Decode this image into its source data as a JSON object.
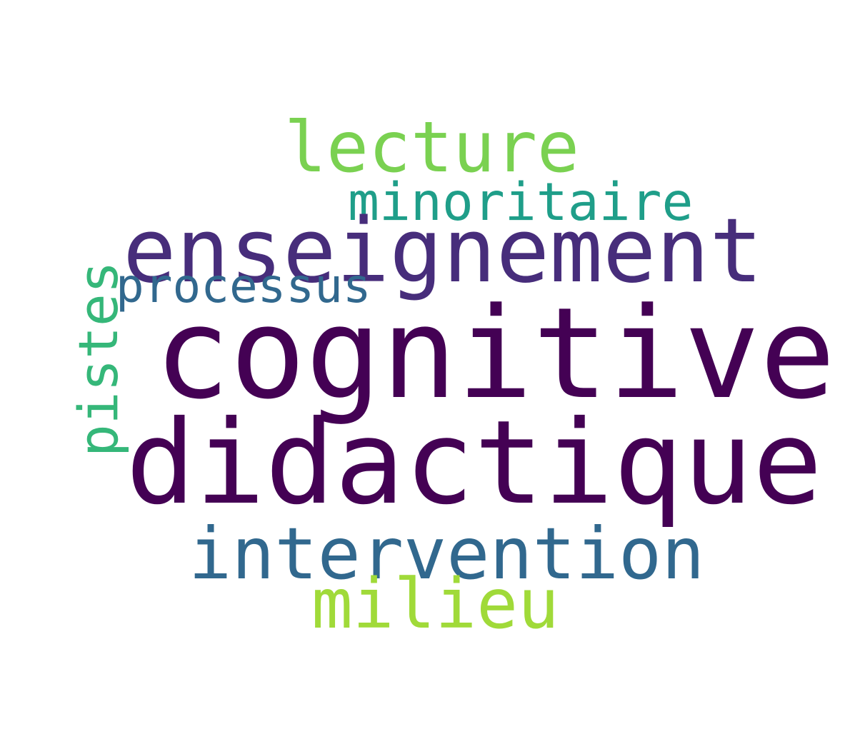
{
  "words": [
    {
      "text": "lecture",
      "color": "#7ad151"
    },
    {
      "text": "minoritaire",
      "color": "#1f9e89"
    },
    {
      "text": "enseignement",
      "color": "#472d7b"
    },
    {
      "text": "processus",
      "color": "#31688e"
    },
    {
      "text": "cognitive",
      "color": "#440154"
    },
    {
      "text": "didactique",
      "color": "#440154"
    },
    {
      "text": "intervention",
      "color": "#31688e"
    },
    {
      "text": "milieu",
      "color": "#a0da39"
    },
    {
      "text": "pistes",
      "color": "#35b779"
    }
  ]
}
